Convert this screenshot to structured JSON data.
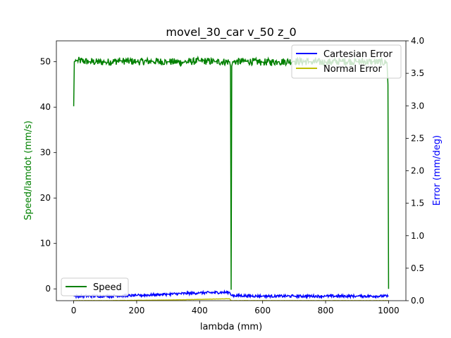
{
  "chart_data": {
    "type": "line",
    "title": "movel_30_car v_50 z_0",
    "xlabel": "lambda (mm)",
    "ylabel_left": "Speed/lamdot (mm/s)",
    "ylabel_right": "Error (mm/deg)",
    "xlim": [
      -55,
      1055
    ],
    "ylim_left": [
      -2.6,
      54.6
    ],
    "ylim_right": [
      0.0,
      4.0
    ],
    "x_ticks": [
      0,
      200,
      400,
      600,
      800,
      1000
    ],
    "y_left_ticks": [
      0,
      10,
      20,
      30,
      40,
      50
    ],
    "y_right_ticks": [
      0.0,
      0.5,
      1.0,
      1.5,
      2.0,
      2.5,
      3.0,
      3.5,
      4.0
    ],
    "grid": false,
    "legend_right_placement": "upper right",
    "legend_left_placement": "lower left",
    "colors": {
      "speed": "#008000",
      "cartesian_error": "#0000ff",
      "normal_error": "#bfbf00",
      "left_axis_label": "#008000",
      "right_axis_label": "#0000ff"
    },
    "series": [
      {
        "name": "Speed",
        "axis": "left",
        "x": [
          0,
          2,
          10,
          50,
          100,
          150,
          200,
          250,
          300,
          350,
          400,
          450,
          495,
          498,
          500,
          502,
          505,
          550,
          600,
          650,
          700,
          750,
          800,
          850,
          900,
          950,
          995,
          998,
          1000
        ],
        "y": [
          40.2,
          50.0,
          50.3,
          50.0,
          49.9,
          50.2,
          50.0,
          50.1,
          50.0,
          49.9,
          50.2,
          50.0,
          50.0,
          49.0,
          -0.2,
          49.0,
          50.0,
          50.1,
          49.9,
          50.0,
          50.1,
          50.0,
          49.9,
          50.1,
          50.0,
          50.0,
          49.8,
          45.0,
          0.0
        ],
        "noise_amplitude": 0.8
      },
      {
        "name": "Cartesian Error",
        "axis": "right",
        "x": [
          0,
          100,
          200,
          300,
          400,
          495,
          500,
          600,
          700,
          800,
          900,
          1000
        ],
        "y": [
          0.07,
          0.07,
          0.08,
          0.1,
          0.12,
          0.13,
          0.08,
          0.07,
          0.07,
          0.07,
          0.07,
          0.07
        ],
        "noise_amplitude": 0.02
      },
      {
        "name": "Normal Error",
        "axis": "right",
        "x": [
          0,
          100,
          200,
          300,
          400,
          495,
          500,
          600,
          700,
          800,
          900,
          1000
        ],
        "y": [
          0.0,
          0.0,
          0.005,
          0.01,
          0.02,
          0.03,
          0.0,
          0.0,
          0.0,
          0.0,
          0.0,
          0.0
        ],
        "noise_amplitude": 0.002
      }
    ]
  }
}
